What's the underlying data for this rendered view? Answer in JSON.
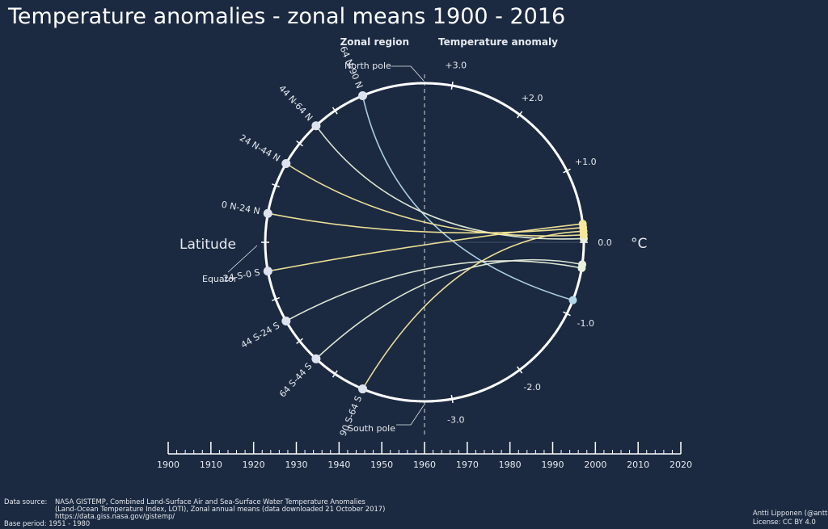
{
  "title": "Temperature anomalies - zonal means    1900 - 2016",
  "headers": {
    "zonal": "Zonal region",
    "temp": "Temperature anomaly"
  },
  "labels": {
    "latitude": "Latitude",
    "equator": "Equator",
    "north_pole": "North pole",
    "south_pole": "South pole",
    "unit": "°C"
  },
  "footer": {
    "source_label": "Data source:",
    "source_lines": [
      "NASA GISTEMP, Combined Land-Surface Air and Sea-Surface Water Temperature Anomalies",
      "(Land-Ocean Temperature Index, LOTI), Zonal annual means (data downloaded 21 October 2017)",
      "https://data.giss.nasa.gov/gistemp/"
    ],
    "base_period": "Base period: 1951 - 1980",
    "author": "Antti Lipponen (@anttilip)",
    "license": "License: CC BY 4.0"
  },
  "colors": {
    "background": "#1b2a41",
    "circle": "#ffffff",
    "warm": "#f6e79a",
    "neutral": "#e9f0dc",
    "cool": "#b3d6e8"
  },
  "chart_data": {
    "type": "line",
    "x_axis": {
      "ticks": [
        1900,
        1910,
        1920,
        1930,
        1940,
        1950,
        1960,
        1970,
        1980,
        1990,
        2000,
        2010,
        2020
      ],
      "range": [
        1900,
        2020
      ]
    },
    "anomaly_axis": {
      "ticks": [
        3.0,
        2.0,
        1.0,
        0.0,
        -1.0,
        -2.0,
        -3.0
      ],
      "tick_labels": [
        "+3.0",
        "+2.0",
        "+1.0",
        "0.0",
        "-1.0",
        "-2.0",
        "-3.0"
      ],
      "range": [
        -3.0,
        3.0
      ]
    },
    "zones": [
      {
        "name": "64 N-90 N",
        "latitude_mid": 77,
        "anomaly": -0.8,
        "color": "cool"
      },
      {
        "name": "44 N-64 N",
        "latitude_mid": 54,
        "anomaly": 0.05,
        "color": "neutral"
      },
      {
        "name": "24 N-44 N",
        "latitude_mid": 34,
        "anomaly": 0.1,
        "color": "warm"
      },
      {
        "name": "0 N-24 N",
        "latitude_mid": 12,
        "anomaly": 0.2,
        "color": "warm"
      },
      {
        "name": "24 S-0 S",
        "latitude_mid": -12,
        "anomaly": 0.25,
        "color": "warm"
      },
      {
        "name": "44 S-24 S",
        "latitude_mid": -34,
        "anomaly": -0.35,
        "color": "neutral"
      },
      {
        "name": "64 S-44 S",
        "latitude_mid": -54,
        "anomaly": -0.3,
        "color": "neutral"
      },
      {
        "name": "90 S-64 S",
        "latitude_mid": -77,
        "anomaly": 0.15,
        "color": "warm"
      }
    ]
  }
}
